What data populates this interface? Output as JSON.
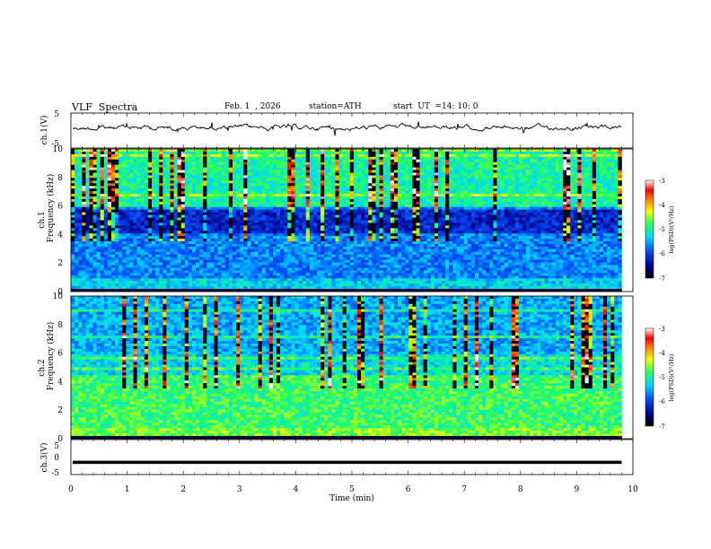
{
  "header": {
    "title": "VLF  Spectra",
    "date": "Feb. 1  , 2026",
    "station": "station=ATH",
    "start_ut_label": "start  UT  =",
    "start_ut_value": "14: 10: 0"
  },
  "chart_data": [
    {
      "type": "line",
      "name": "ch1-waveform",
      "ylabel": "ch.1(V)",
      "ylim": [
        -5,
        5
      ],
      "yticks": [
        "5",
        "-5"
      ],
      "xlim": [
        0,
        10
      ]
    },
    {
      "type": "heatmap",
      "name": "ch1-spectrogram",
      "ylabel": "ch.1\nFrequency (kHz)",
      "ylabel_ch": "ch.1",
      "ylabel_freq": "Frequency (kHz)",
      "ylim": [
        0,
        10
      ],
      "yticks": [
        "0",
        "2",
        "4",
        "6",
        "8",
        "10"
      ],
      "xlim": [
        0,
        9.8
      ],
      "colorbar": {
        "label": "log(PSD)(V²/Hz)",
        "range": [
          -7,
          -3
        ],
        "ticks": [
          "-3",
          "-4",
          "-5",
          "-6",
          "-7"
        ]
      }
    },
    {
      "type": "heatmap",
      "name": "ch2-spectrogram",
      "ylabel": "ch.2\nFrequency (kHz)",
      "ylabel_ch": "ch.2",
      "ylabel_freq": "Frequency (kHz)",
      "ylim": [
        0,
        10
      ],
      "yticks": [
        "0",
        "2",
        "4",
        "6",
        "8",
        "10"
      ],
      "xlim": [
        0,
        9.8
      ],
      "colorbar": {
        "label": "log(PSD)(V²/Hz)",
        "range": [
          -7,
          -3
        ],
        "ticks": [
          "-3",
          "-4",
          "-5",
          "-6",
          "-7"
        ]
      }
    },
    {
      "type": "line",
      "name": "ch3-waveform",
      "ylabel": "ch.3(V)",
      "ylim": [
        -5,
        5
      ],
      "yticks": [
        "5",
        "0",
        "-5"
      ],
      "xlim": [
        0,
        10
      ],
      "level": -1.5
    }
  ],
  "xaxis": {
    "label": "Time  (min)",
    "range": [
      0,
      10
    ],
    "ticks": [
      "0",
      "1",
      "2",
      "3",
      "4",
      "5",
      "6",
      "7",
      "8",
      "9",
      "10"
    ]
  },
  "colors": {
    "axis": "#000000",
    "trace": "#000000"
  }
}
